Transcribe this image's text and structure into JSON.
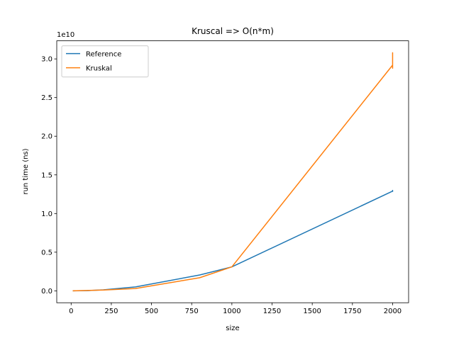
{
  "chart_data": {
    "type": "line",
    "title": "Kruscal => O(n*m)",
    "x_label": "size",
    "y_label": "run time (ns)",
    "y_offset_label": "1e10",
    "series": [
      {
        "name": "Reference",
        "color": "#1f77b4",
        "x": [
          10,
          100,
          200,
          400,
          800,
          1000,
          2000,
          2000,
          2000
        ],
        "values": [
          0,
          0.003,
          0.013,
          0.051,
          0.205,
          0.31,
          1.29,
          1.3,
          1.28
        ]
      },
      {
        "name": "Kruskal",
        "color": "#ff7f0e",
        "x": [
          10,
          100,
          200,
          400,
          800,
          1000,
          2000,
          2000,
          2000,
          2000
        ],
        "values": [
          0,
          0.005,
          0.01,
          0.03,
          0.17,
          0.31,
          2.92,
          3.08,
          2.88,
          3.05
        ]
      }
    ],
    "xlim": [
      -89.5,
      2099.5
    ],
    "xticks": [
      0,
      250,
      500,
      750,
      1000,
      1250,
      1500,
      1750,
      2000
    ],
    "ylim": [
      -0.154,
      3.234
    ],
    "yticks": [
      {
        "value": 0,
        "label": "0.0"
      },
      {
        "value": 0.5,
        "label": "0.5"
      },
      {
        "value": 1,
        "label": "1.0"
      },
      {
        "value": 1.5,
        "label": "1.5"
      },
      {
        "value": 2,
        "label": "2.0"
      },
      {
        "value": 2.5,
        "label": "2.5"
      },
      {
        "value": 3,
        "label": "3.0"
      }
    ],
    "legend": "upper left"
  }
}
